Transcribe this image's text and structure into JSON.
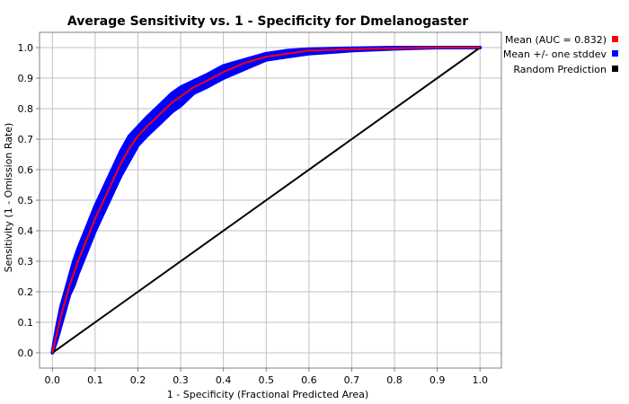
{
  "chart_data": {
    "type": "line",
    "title": "Average Sensitivity vs. 1 - Specificity for Dmelanogaster",
    "xlabel": "1 - Specificity (Fractional Predicted Area)",
    "ylabel": "Sensitivity (1 - Omission Rate)",
    "xlim": [
      -0.03,
      1.05
    ],
    "ylim": [
      -0.05,
      1.05
    ],
    "x_ticks": [
      0.0,
      0.1,
      0.2,
      0.3,
      0.4,
      0.5,
      0.6,
      0.7,
      0.8,
      0.9,
      1.0
    ],
    "y_ticks": [
      0.0,
      0.1,
      0.2,
      0.3,
      0.4,
      0.5,
      0.6,
      0.7,
      0.8,
      0.9,
      1.0
    ],
    "x_tick_labels": [
      "0.0",
      "0.1",
      "0.2",
      "0.3",
      "0.4",
      "0.5",
      "0.6",
      "0.7",
      "0.8",
      "0.9",
      "1.0"
    ],
    "y_tick_labels": [
      "0.0",
      "0.1",
      "0.2",
      "0.3",
      "0.4",
      "0.5",
      "0.6",
      "0.7",
      "0.8",
      "0.9",
      "1.0"
    ],
    "grid": true,
    "legend_position": "right",
    "series": [
      {
        "name": "Mean (AUC = 0.832)",
        "color": "#ff0000",
        "x": [
          0.0,
          0.01,
          0.02,
          0.03,
          0.04,
          0.05,
          0.06,
          0.08,
          0.1,
          0.12,
          0.14,
          0.16,
          0.18,
          0.2,
          0.22,
          0.25,
          0.28,
          0.3,
          0.33,
          0.36,
          0.4,
          0.45,
          0.5,
          0.55,
          0.6,
          0.7,
          0.8,
          0.9,
          1.0
        ],
        "y": [
          0.0,
          0.06,
          0.12,
          0.17,
          0.22,
          0.26,
          0.3,
          0.37,
          0.44,
          0.5,
          0.56,
          0.62,
          0.67,
          0.71,
          0.74,
          0.78,
          0.82,
          0.84,
          0.87,
          0.89,
          0.92,
          0.95,
          0.97,
          0.98,
          0.99,
          0.995,
          0.998,
          1.0,
          1.0
        ]
      },
      {
        "name": "Mean +/- one stddev",
        "color": "#0000ff",
        "x": [
          0.0,
          0.01,
          0.02,
          0.03,
          0.04,
          0.05,
          0.06,
          0.08,
          0.1,
          0.12,
          0.14,
          0.16,
          0.18,
          0.2,
          0.22,
          0.25,
          0.28,
          0.3,
          0.33,
          0.36,
          0.4,
          0.45,
          0.5,
          0.55,
          0.6,
          0.7,
          0.8,
          0.9,
          1.0
        ],
        "y_upper": [
          0.0,
          0.08,
          0.15,
          0.2,
          0.25,
          0.3,
          0.34,
          0.41,
          0.48,
          0.54,
          0.6,
          0.66,
          0.71,
          0.74,
          0.77,
          0.81,
          0.85,
          0.87,
          0.89,
          0.91,
          0.94,
          0.96,
          0.98,
          0.99,
          0.995,
          0.998,
          1.0,
          1.0,
          1.0
        ],
        "y_lower": [
          0.0,
          0.04,
          0.09,
          0.14,
          0.19,
          0.22,
          0.26,
          0.33,
          0.4,
          0.46,
          0.52,
          0.58,
          0.63,
          0.68,
          0.71,
          0.75,
          0.79,
          0.81,
          0.85,
          0.87,
          0.9,
          0.93,
          0.96,
          0.97,
          0.98,
          0.99,
          0.996,
          1.0,
          1.0
        ]
      },
      {
        "name": "Random Prediction",
        "color": "#000000",
        "x": [
          0.0,
          1.0
        ],
        "y": [
          0.0,
          1.0
        ]
      }
    ]
  }
}
